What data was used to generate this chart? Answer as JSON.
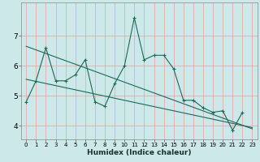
{
  "xlabel": "Humidex (Indice chaleur)",
  "background_color": "#cce8e8",
  "line_color": "#1a6b5a",
  "grid_color_v": "#e8a0a0",
  "grid_color_h": "#e8a0a0",
  "x_values": [
    0,
    1,
    2,
    3,
    4,
    5,
    6,
    7,
    8,
    9,
    10,
    11,
    12,
    13,
    14,
    15,
    16,
    17,
    18,
    19,
    20,
    21,
    22,
    23
  ],
  "series1": [
    4.8,
    5.5,
    6.6,
    5.5,
    5.5,
    5.7,
    6.2,
    4.8,
    4.65,
    5.4,
    6.0,
    7.6,
    6.2,
    6.35,
    6.35,
    5.9,
    4.85,
    4.85,
    4.6,
    4.45,
    4.5,
    3.85,
    4.45,
    null
  ],
  "trend1_start": 6.65,
  "trend1_end": 3.9,
  "trend2_start": 5.55,
  "trend2_end": 3.94,
  "ylim_min": 3.55,
  "ylim_max": 8.1,
  "yticks": [
    4,
    5,
    6,
    7
  ],
  "xticks": [
    0,
    1,
    2,
    3,
    4,
    5,
    6,
    7,
    8,
    9,
    10,
    11,
    12,
    13,
    14,
    15,
    16,
    17,
    18,
    19,
    20,
    21,
    22,
    23
  ],
  "xlabel_fontsize": 6.5,
  "tick_fontsize_x": 5.0,
  "tick_fontsize_y": 6.5
}
